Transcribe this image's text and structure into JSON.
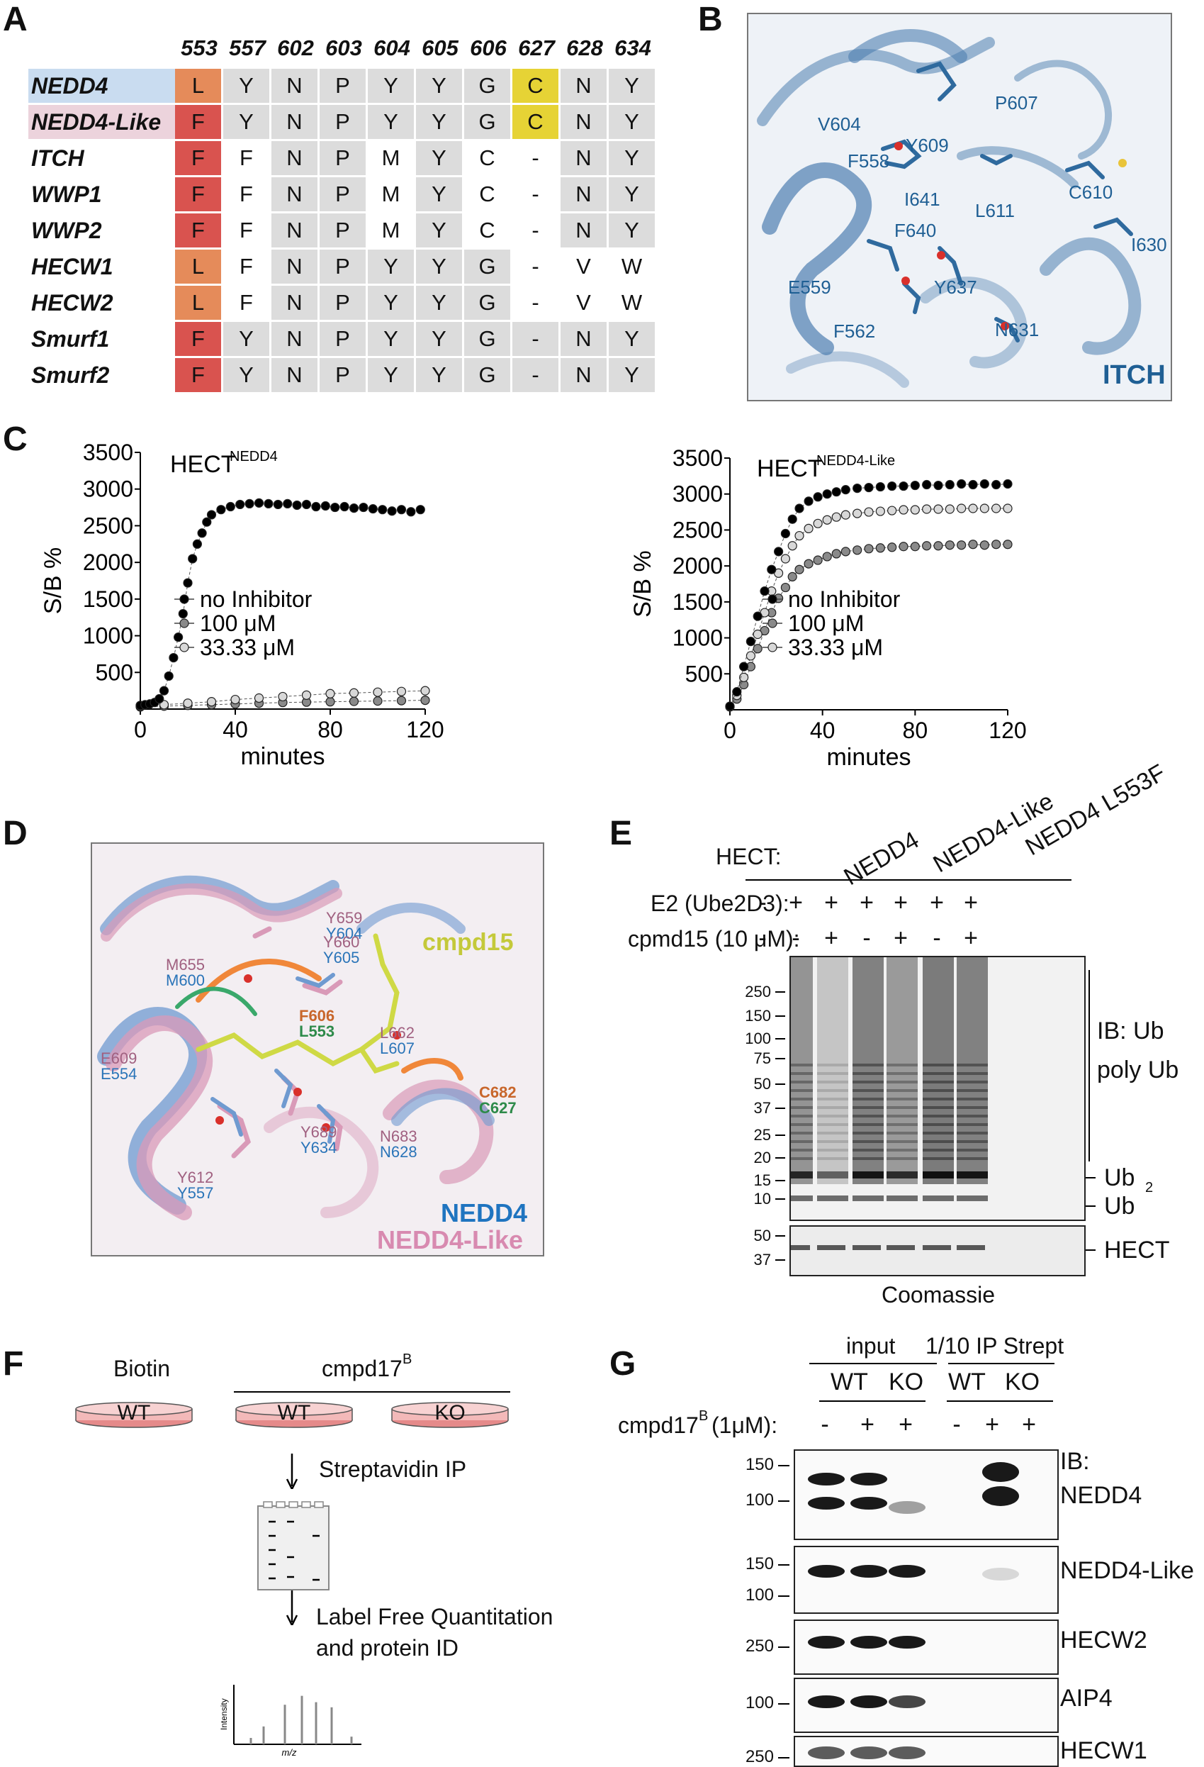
{
  "panels": {
    "A": "A",
    "B": "B",
    "C": "C",
    "D": "D",
    "E": "E",
    "F": "F",
    "G": "G"
  },
  "panelA": {
    "positions": [
      "553",
      "557",
      "602",
      "603",
      "604",
      "605",
      "606",
      "627",
      "628",
      "634"
    ],
    "rows": [
      {
        "name": "NEDD4",
        "cells": [
          "L",
          "Y",
          "N",
          "P",
          "Y",
          "Y",
          "G",
          "C",
          "N",
          "Y"
        ]
      },
      {
        "name": "NEDD4-Like",
        "cells": [
          "F",
          "Y",
          "N",
          "P",
          "Y",
          "Y",
          "G",
          "C",
          "N",
          "Y"
        ]
      },
      {
        "name": "ITCH",
        "cells": [
          "F",
          "F",
          "N",
          "P",
          "M",
          "Y",
          "C",
          "-",
          "N",
          "Y"
        ]
      },
      {
        "name": "WWP1",
        "cells": [
          "F",
          "F",
          "N",
          "P",
          "M",
          "Y",
          "C",
          "-",
          "N",
          "Y"
        ]
      },
      {
        "name": "WWP2",
        "cells": [
          "F",
          "F",
          "N",
          "P",
          "M",
          "Y",
          "C",
          "-",
          "N",
          "Y"
        ]
      },
      {
        "name": "HECW1",
        "cells": [
          "L",
          "F",
          "N",
          "P",
          "Y",
          "Y",
          "G",
          "-",
          "V",
          "W"
        ]
      },
      {
        "name": "HECW2",
        "cells": [
          "L",
          "F",
          "N",
          "P",
          "Y",
          "Y",
          "G",
          "-",
          "V",
          "W"
        ]
      },
      {
        "name": "Smurf1",
        "cells": [
          "F",
          "Y",
          "N",
          "P",
          "Y",
          "Y",
          "G",
          "-",
          "N",
          "Y"
        ]
      },
      {
        "name": "Smurf2",
        "cells": [
          "F",
          "Y",
          "N",
          "P",
          "Y",
          "Y",
          "G",
          "-",
          "N",
          "Y"
        ]
      }
    ],
    "colors": {
      "L": "#e58b5a",
      "F": "#d9534f",
      "C_hl": "#e6d335",
      "grey": "#dcdcdc",
      "nedd4_bg": "#c9dcf0",
      "nedd4l_bg": "#ecd3dc"
    }
  },
  "panelB": {
    "caption": "ITCH",
    "residues": [
      "P607",
      "V604",
      "Y609",
      "F558",
      "I641",
      "L611",
      "C610",
      "F640",
      "I630",
      "E559",
      "Y637",
      "F562",
      "N631"
    ]
  },
  "panelD": {
    "ligand": "cmpd15",
    "legend1": "NEDD4",
    "legend2": "NEDD4-Like",
    "pairs": [
      [
        "Y659",
        "Y604"
      ],
      [
        "Y660",
        "Y605"
      ],
      [
        "M655",
        "M600"
      ],
      [
        "F606",
        "L553"
      ],
      [
        "L662",
        "L607"
      ],
      [
        "E609",
        "E554"
      ],
      [
        "C682",
        "C627"
      ],
      [
        "Y689",
        "Y634"
      ],
      [
        "N683",
        "N628"
      ],
      [
        "Y612",
        "Y557"
      ]
    ]
  },
  "chart_data": [
    {
      "type": "scatter",
      "title": "HECT",
      "title_sup": "NEDD4",
      "xlabel": "minutes",
      "ylabel": "S/B %",
      "xlim": [
        0,
        120
      ],
      "ylim": [
        0,
        3500
      ],
      "xticks": [
        "0",
        "40",
        "80",
        "120"
      ],
      "yticks": [
        "500",
        "1000",
        "1500",
        "2000",
        "2500",
        "3000",
        "3500"
      ],
      "legend": [
        "no Inhibitor",
        "100 μM",
        "33.33 μM"
      ],
      "series": [
        {
          "name": "no Inhibitor",
          "color": "#000000",
          "x": [
            0,
            2,
            4,
            6,
            8,
            10,
            12,
            14,
            16,
            18,
            20,
            22,
            24,
            26,
            28,
            30,
            34,
            38,
            42,
            46,
            50,
            54,
            58,
            62,
            66,
            70,
            74,
            78,
            82,
            86,
            90,
            94,
            98,
            102,
            106,
            110,
            114,
            118
          ],
          "y": [
            50,
            60,
            70,
            90,
            140,
            250,
            450,
            700,
            980,
            1300,
            1720,
            2050,
            2250,
            2400,
            2550,
            2650,
            2720,
            2760,
            2790,
            2800,
            2810,
            2800,
            2790,
            2800,
            2780,
            2790,
            2760,
            2770,
            2750,
            2760,
            2740,
            2750,
            2730,
            2720,
            2700,
            2720,
            2690,
            2720
          ]
        },
        {
          "name": "100 μM",
          "color": "#8a8a8a",
          "x": [
            0,
            10,
            20,
            30,
            40,
            50,
            60,
            70,
            80,
            90,
            100,
            110,
            120
          ],
          "y": [
            30,
            40,
            50,
            60,
            70,
            80,
            90,
            95,
            100,
            105,
            110,
            115,
            120
          ]
        },
        {
          "name": "33.33 μM",
          "color": "#d8d8d8",
          "x": [
            0,
            10,
            20,
            30,
            40,
            50,
            60,
            70,
            80,
            90,
            100,
            110,
            120
          ],
          "y": [
            40,
            60,
            80,
            100,
            130,
            150,
            170,
            190,
            210,
            220,
            230,
            240,
            250
          ]
        }
      ]
    },
    {
      "type": "scatter",
      "title": "HECT",
      "title_sup": "NEDD4-Like",
      "xlabel": "minutes",
      "ylabel": "S/B %",
      "xlim": [
        0,
        120
      ],
      "ylim": [
        0,
        3500
      ],
      "xticks": [
        "0",
        "40",
        "80",
        "120"
      ],
      "yticks": [
        "500",
        "1000",
        "1500",
        "2000",
        "2500",
        "3000",
        "3500"
      ],
      "legend": [
        "no Inhibitor",
        "100 μM",
        "33.33 μM"
      ],
      "series": [
        {
          "name": "no Inhibitor",
          "color": "#000000",
          "x": [
            0,
            3,
            6,
            9,
            12,
            15,
            18,
            21,
            24,
            27,
            30,
            34,
            38,
            42,
            46,
            50,
            55,
            60,
            65,
            70,
            75,
            80,
            85,
            90,
            95,
            100,
            105,
            110,
            115,
            120
          ],
          "y": [
            50,
            250,
            600,
            950,
            1300,
            1650,
            1950,
            2200,
            2450,
            2650,
            2800,
            2900,
            2960,
            3000,
            3030,
            3060,
            3080,
            3090,
            3100,
            3110,
            3110,
            3120,
            3130,
            3120,
            3130,
            3140,
            3130,
            3140,
            3130,
            3140
          ]
        },
        {
          "name": "100 μM",
          "color": "#8a8a8a",
          "x": [
            0,
            3,
            6,
            9,
            12,
            15,
            18,
            21,
            24,
            27,
            30,
            34,
            38,
            42,
            46,
            50,
            55,
            60,
            65,
            70,
            75,
            80,
            85,
            90,
            95,
            100,
            105,
            110,
            115,
            120
          ],
          "y": [
            40,
            150,
            350,
            600,
            850,
            1100,
            1350,
            1550,
            1700,
            1850,
            1950,
            2030,
            2080,
            2130,
            2170,
            2200,
            2220,
            2240,
            2250,
            2260,
            2270,
            2270,
            2280,
            2280,
            2290,
            2290,
            2300,
            2290,
            2300,
            2300
          ]
        },
        {
          "name": "33.33 μM",
          "color": "#d8d8d8",
          "x": [
            0,
            3,
            6,
            9,
            12,
            15,
            18,
            21,
            24,
            27,
            30,
            34,
            38,
            42,
            46,
            50,
            55,
            60,
            65,
            70,
            75,
            80,
            85,
            90,
            95,
            100,
            105,
            110,
            115,
            120
          ],
          "y": [
            45,
            200,
            450,
            750,
            1050,
            1350,
            1650,
            1900,
            2100,
            2280,
            2420,
            2520,
            2590,
            2640,
            2680,
            2710,
            2730,
            2750,
            2760,
            2770,
            2780,
            2780,
            2790,
            2790,
            2790,
            2800,
            2800,
            2800,
            2800,
            2800
          ]
        }
      ]
    }
  ],
  "panelE": {
    "col_headers": [
      "NEDD4",
      "NEDD4-Like",
      "NEDD4 L553F"
    ],
    "hect_label": "HECT:",
    "e2_label": "E2 (Ube2D3):",
    "e2_values": [
      "-",
      "+",
      "+",
      "+",
      "+",
      "+",
      "+"
    ],
    "cpd_label": "cpmd15 (10 μM):",
    "cpd_values": [
      "-",
      "-",
      "+",
      "-",
      "+",
      "-",
      "+"
    ],
    "markers": [
      "250",
      "150",
      "100",
      "75",
      "50",
      "37",
      "25",
      "20",
      "15",
      "10"
    ],
    "hect_markers": [
      "50",
      "37"
    ],
    "right": {
      "ib": "IB: Ub",
      "poly": "poly Ub",
      "ub2": "Ub",
      "ub2_sub": "2",
      "ub": "Ub",
      "hect": "HECT"
    },
    "bottom": "Coomassie"
  },
  "panelF": {
    "biotin": "Biotin",
    "cmpd": "cmpd17",
    "cmpd_sup": "B",
    "wt1": "WT",
    "wt2": "WT",
    "ko": "KO",
    "step1": "Streptavidin IP",
    "step2": "Label Free Quantitation",
    "step3": "and protein ID",
    "intensity": "Intensity",
    "mz": "m/z"
  },
  "panelG": {
    "input": "input",
    "ip": "1/10 IP Strept",
    "wt": "WT",
    "ko": "KO",
    "wt2": "WT",
    "ko2": "KO",
    "cmpd_label": "cmpd17",
    "cmpd_sup": "B",
    "cmpd_tail": "(1μM):",
    "signs": [
      "-",
      "+",
      "+",
      "-",
      "+",
      "+"
    ],
    "blots": [
      {
        "label": "IB:",
        "label2": "NEDD4",
        "markers": [
          "150",
          "100"
        ]
      },
      {
        "label": "NEDD4-Like",
        "markers": [
          "150",
          "100"
        ]
      },
      {
        "label": "HECW2",
        "markers": [
          "250"
        ]
      },
      {
        "label": "AIP4",
        "markers": [
          "100"
        ]
      },
      {
        "label": "HECW1",
        "markers": [
          "250"
        ]
      }
    ]
  }
}
